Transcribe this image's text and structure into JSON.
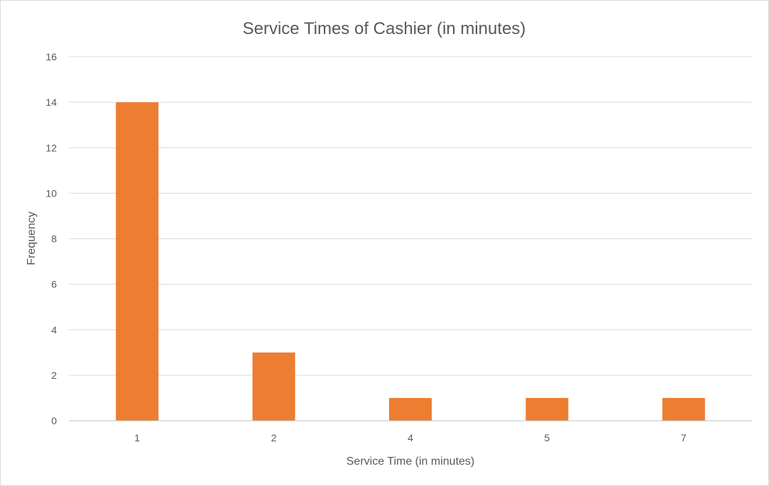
{
  "chart_data": {
    "type": "bar",
    "title": "Service Times of Cashier (in minutes)",
    "xlabel": "Service Time (in minutes)",
    "ylabel": "Frequency",
    "categories": [
      "1",
      "2",
      "4",
      "5",
      "7"
    ],
    "values": [
      14,
      3,
      1,
      1,
      1
    ],
    "ylim": [
      0,
      16
    ],
    "yticks": [
      "0",
      "2",
      "4",
      "6",
      "8",
      "10",
      "12",
      "14",
      "16"
    ],
    "grid": true,
    "legend": "none",
    "colors": {
      "bar": "#ED7D31",
      "grid": "#D9D9D9",
      "text": "#595959",
      "axis": "#BFBFBF"
    }
  }
}
